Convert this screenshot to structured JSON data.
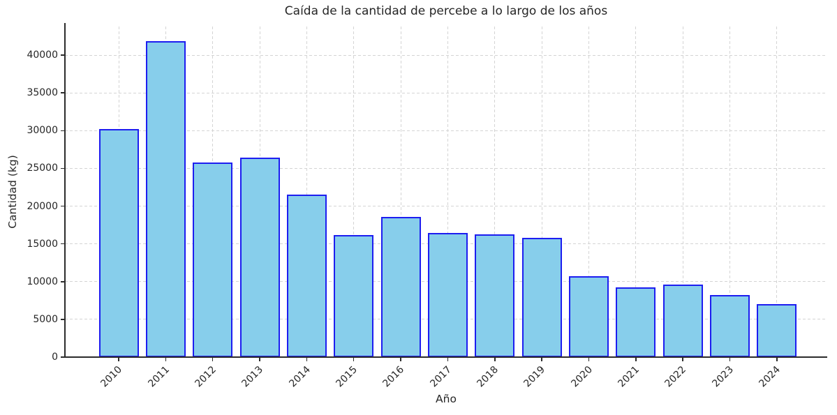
{
  "chart_data": {
    "type": "bar",
    "title": "Caída de la cantidad de percebe a lo largo de los años",
    "xlabel": "Año",
    "ylabel": "Cantidad (kg)",
    "categories": [
      "2010",
      "2011",
      "2012",
      "2013",
      "2014",
      "2015",
      "2016",
      "2017",
      "2018",
      "2019",
      "2020",
      "2021",
      "2022",
      "2023",
      "2024"
    ],
    "values": [
      30250,
      41820,
      25780,
      26430,
      21540,
      16180,
      18590,
      16460,
      16270,
      15810,
      10740,
      9280,
      9600,
      8260,
      7000
    ],
    "ylim": [
      0,
      43800
    ],
    "yticks": [
      0,
      5000,
      10000,
      15000,
      20000,
      25000,
      30000,
      35000,
      40000
    ],
    "grid": true,
    "grid_style": "dashed",
    "legend": "none",
    "colors": {
      "bar_fill": "#87CEEB",
      "bar_edge": "#1d1df0",
      "grid": "#d4d4d4",
      "axis": "#2b2b2b",
      "text": "#262626"
    }
  }
}
